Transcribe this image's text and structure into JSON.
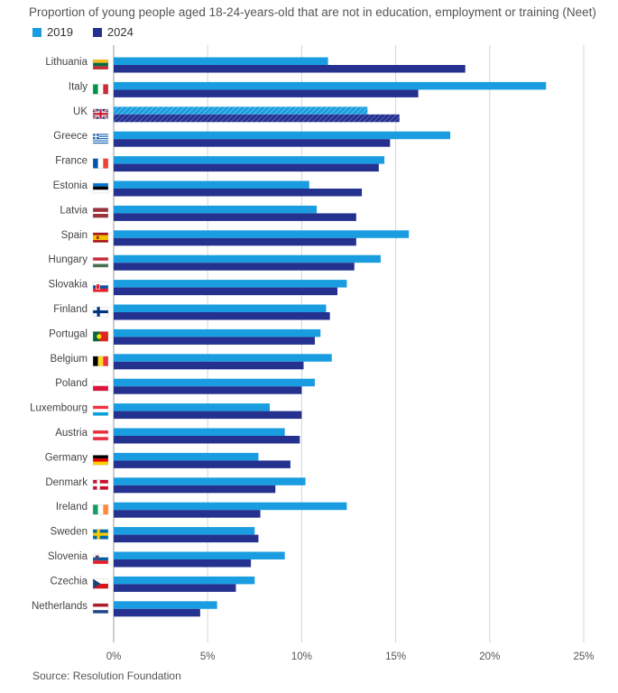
{
  "title": "Proportion of young people aged 18-24-years-old that are not in education, employment or training (Neet)",
  "source": "Source: Resolution Foundation",
  "colors": {
    "2019": "#1a9de0",
    "2024": "#24318f",
    "grid": "#d5d5d5"
  },
  "chart_data": {
    "type": "bar",
    "orientation": "horizontal",
    "title": "Proportion of young people aged 18-24-years-old that are not in education, employment or training (Neet)",
    "categories": [
      "Lithuania",
      "Italy",
      "UK",
      "Greece",
      "France",
      "Estonia",
      "Latvia",
      "Spain",
      "Hungary",
      "Slovakia",
      "Finland",
      "Portugal",
      "Belgium",
      "Poland",
      "Luxembourg",
      "Austria",
      "Germany",
      "Denmark",
      "Ireland",
      "Sweden",
      "Slovenia",
      "Czechia",
      "Netherlands"
    ],
    "series": [
      {
        "name": "2019",
        "values": [
          11.4,
          23.0,
          13.5,
          17.9,
          14.4,
          10.4,
          10.8,
          15.7,
          14.2,
          12.4,
          11.3,
          11.0,
          11.6,
          10.7,
          8.3,
          9.1,
          7.7,
          10.2,
          12.4,
          7.5,
          9.1,
          7.5,
          5.5
        ]
      },
      {
        "name": "2024",
        "values": [
          18.7,
          16.2,
          15.2,
          14.7,
          14.1,
          13.2,
          12.9,
          12.9,
          12.8,
          11.9,
          11.5,
          10.7,
          10.1,
          10.0,
          10.0,
          9.9,
          9.4,
          8.6,
          7.8,
          7.7,
          7.3,
          6.5,
          4.6
        ]
      }
    ],
    "highlighted_category": "UK",
    "xlim": [
      0,
      25
    ],
    "xticks": [
      "0%",
      "5%",
      "10%",
      "15%",
      "20%",
      "25%"
    ],
    "grid": true,
    "legend_position": "top-left"
  }
}
